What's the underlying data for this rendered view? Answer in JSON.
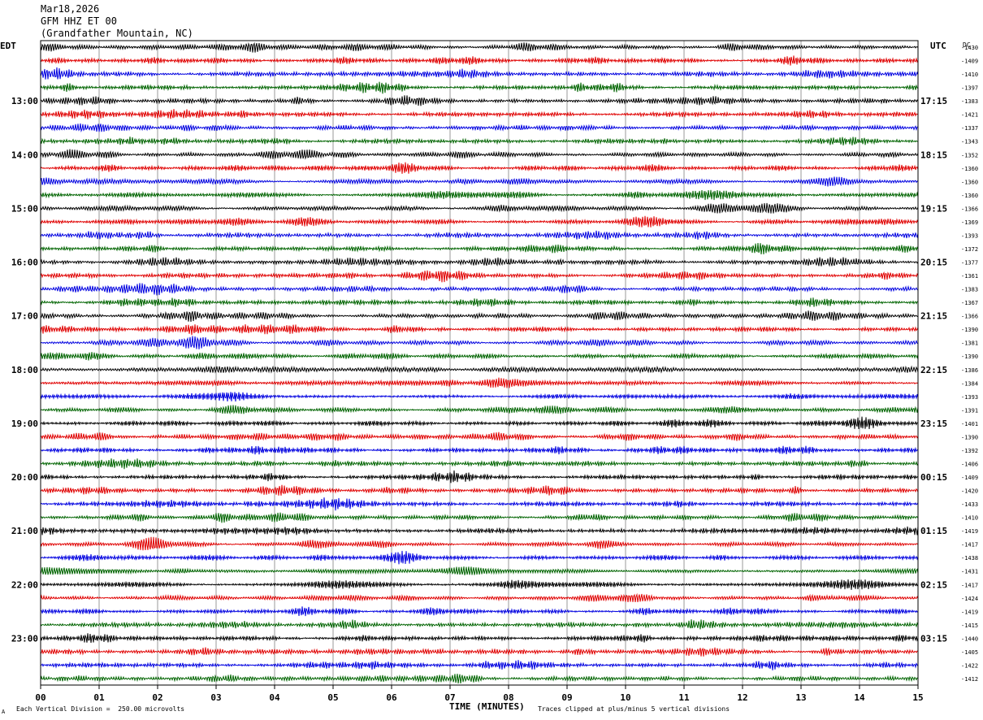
{
  "header": {
    "date": "Mar18,2026",
    "channel": "GFM HHZ ET 00",
    "location": "(Grandfather Mountain, NC)"
  },
  "left_tz": "EDT",
  "right_tz": "UTC",
  "dc_label": "DC",
  "footer": {
    "scale": "Each Vertical Division =  250.00 microvolts",
    "xlabel": "TIME (MINUTES)",
    "clip_note": "Traces clipped at plus/minus 5 vertical divisions",
    "corner_mark": "A"
  },
  "colors": {
    "cycle": [
      "#000000",
      "#e00000",
      "#0000e0",
      "#006400"
    ],
    "grid": "#808080",
    "frame": "#000000"
  },
  "chart_data": {
    "type": "line",
    "title": "",
    "xlabel": "TIME (MINUTES)",
    "ylabel": "",
    "xlim": [
      0,
      15
    ],
    "x_ticks": [
      "00",
      "01",
      "02",
      "03",
      "04",
      "05",
      "06",
      "07",
      "08",
      "09",
      "10",
      "11",
      "12",
      "13",
      "14",
      "15"
    ],
    "grid": true,
    "rows_per_hour": 4,
    "left_hour_labels": [
      "13:00",
      "14:00",
      "15:00",
      "16:00",
      "17:00",
      "18:00",
      "19:00",
      "20:00",
      "21:00",
      "22:00",
      "23:00"
    ],
    "right_hour_labels": [
      "17:15",
      "18:15",
      "19:15",
      "20:15",
      "21:15",
      "22:15",
      "23:15",
      "00:15",
      "01:15",
      "02:15",
      "03:15"
    ],
    "dc_offsets": [
      -1430,
      -1409,
      -1410,
      -1397,
      -1383,
      -1421,
      -1337,
      -1343,
      -1352,
      -1360,
      -1360,
      -1360,
      -1366,
      -1369,
      -1393,
      -1372,
      -1377,
      -1361,
      -1383,
      -1367,
      -1366,
      -1390,
      -1381,
      -1390,
      -1386,
      -1384,
      -1393,
      -1391,
      -1401,
      -1390,
      -1392,
      -1406,
      -1409,
      -1420,
      -1433,
      -1410,
      -1419,
      -1417,
      -1438,
      -1431,
      -1417,
      -1424,
      -1419,
      -1415,
      -1440,
      -1405,
      -1422,
      -1412
    ]
  }
}
